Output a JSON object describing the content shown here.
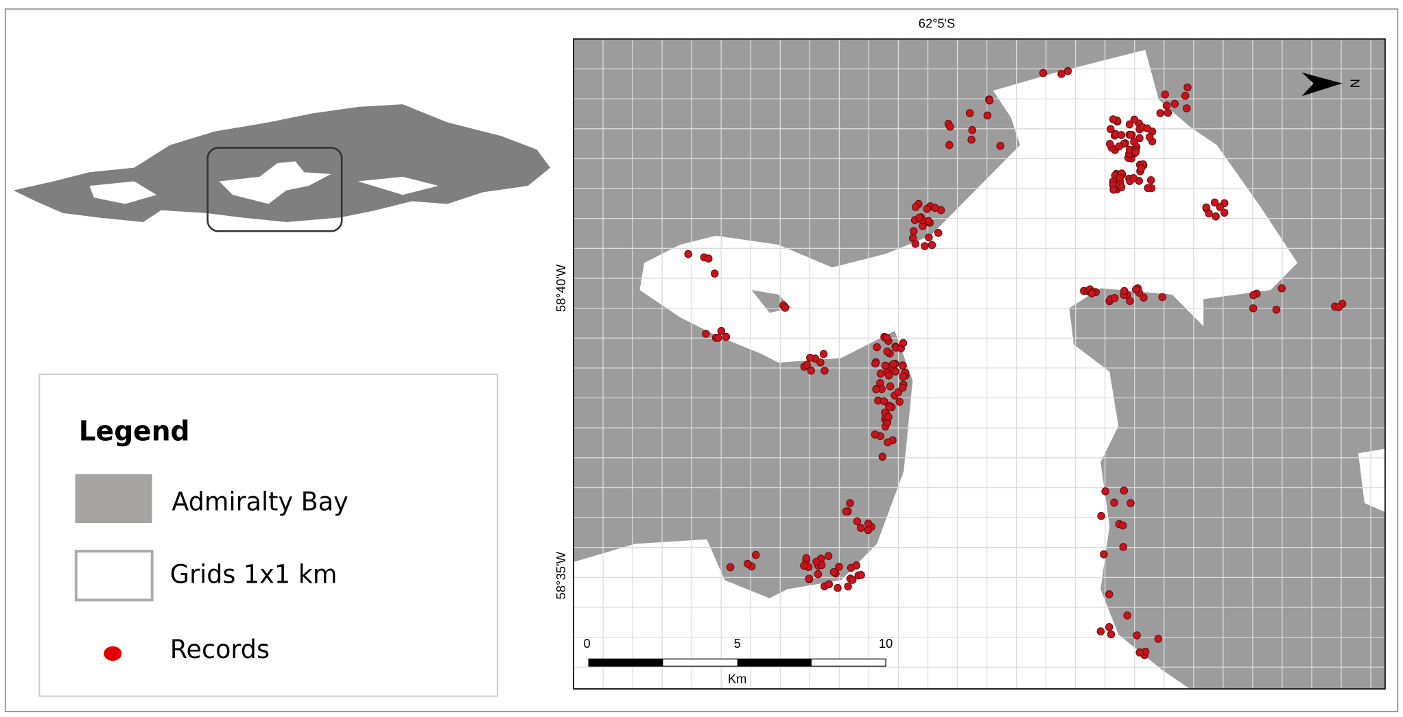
{
  "map": {
    "top_label": "62°5'S",
    "left_labels": [
      "58°40'W",
      "58°35'W"
    ],
    "north": "N",
    "scale": {
      "ticks": [
        "0",
        "5",
        "10"
      ],
      "unit": "Km"
    }
  },
  "legend": {
    "title": "Legend",
    "items": [
      "Admiralty Bay",
      "Grids 1x1 km",
      "Records"
    ]
  }
}
